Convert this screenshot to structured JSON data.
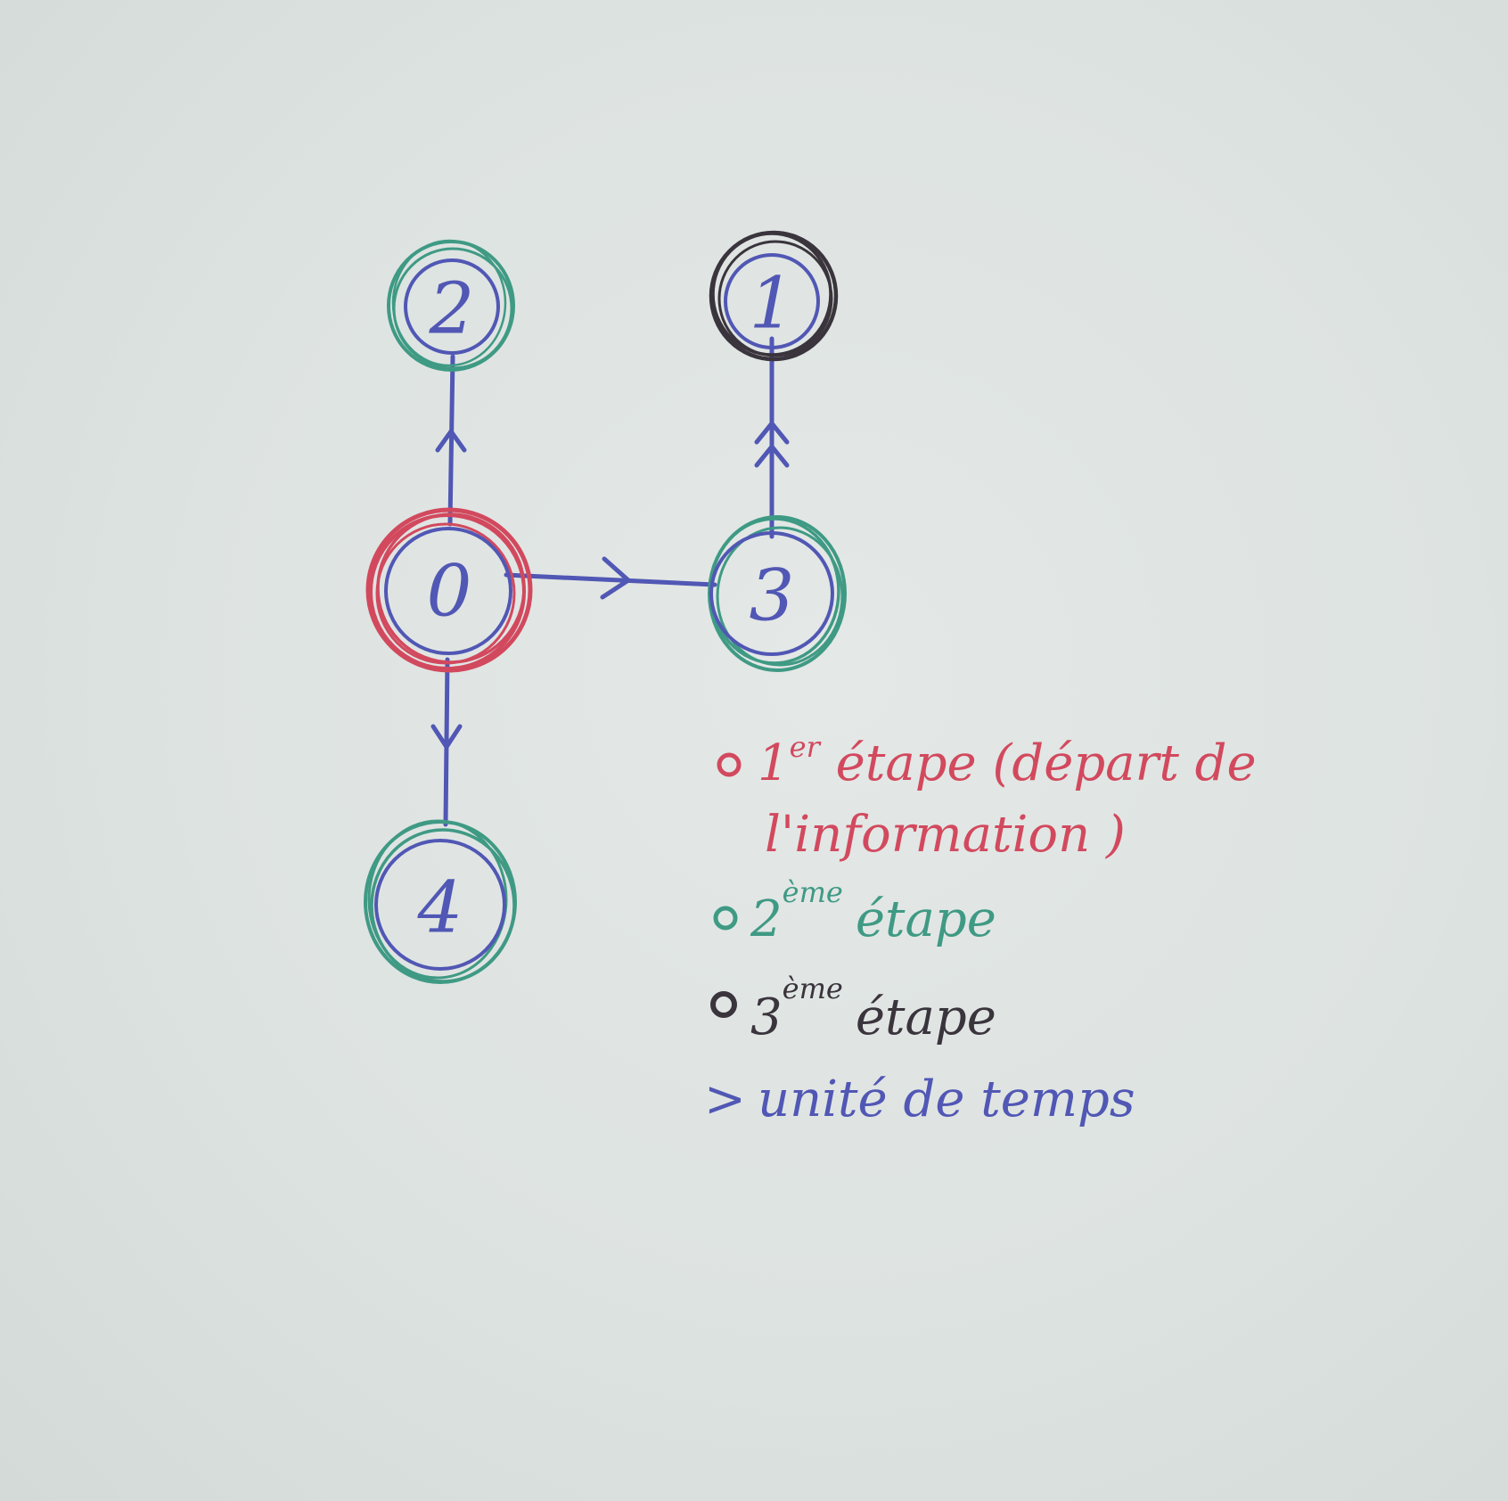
{
  "colors": {
    "ink_blue": "#5157b4",
    "red": "#d2495e",
    "green": "#3f9a84",
    "black": "#3a343c"
  },
  "nodes": [
    {
      "id": "0",
      "label": "0",
      "ring": "red"
    },
    {
      "id": "2",
      "label": "2",
      "ring": "green"
    },
    {
      "id": "1",
      "label": "1",
      "ring": "black"
    },
    {
      "id": "3",
      "label": "3",
      "ring": "green"
    },
    {
      "id": "4",
      "label": "4",
      "ring": "green"
    }
  ],
  "edges": [
    {
      "from": "0",
      "to": "2",
      "arrows": 1
    },
    {
      "from": "0",
      "to": "3",
      "arrows": 1
    },
    {
      "from": "0",
      "to": "4",
      "arrows": 1
    },
    {
      "from": "3",
      "to": "1",
      "arrows": 2
    }
  ],
  "legend": {
    "step1_main": "1",
    "step1_sup": "er",
    "step1_rest": " étape (départ de",
    "step1_line2": "l'information )",
    "step2_main": "2",
    "step2_sup": "ème",
    "step2_rest": "étape",
    "step3_main": "3",
    "step3_sup": "ème",
    "step3_rest": "étape",
    "time_symbol": ">",
    "time_text": "unité de temps"
  }
}
